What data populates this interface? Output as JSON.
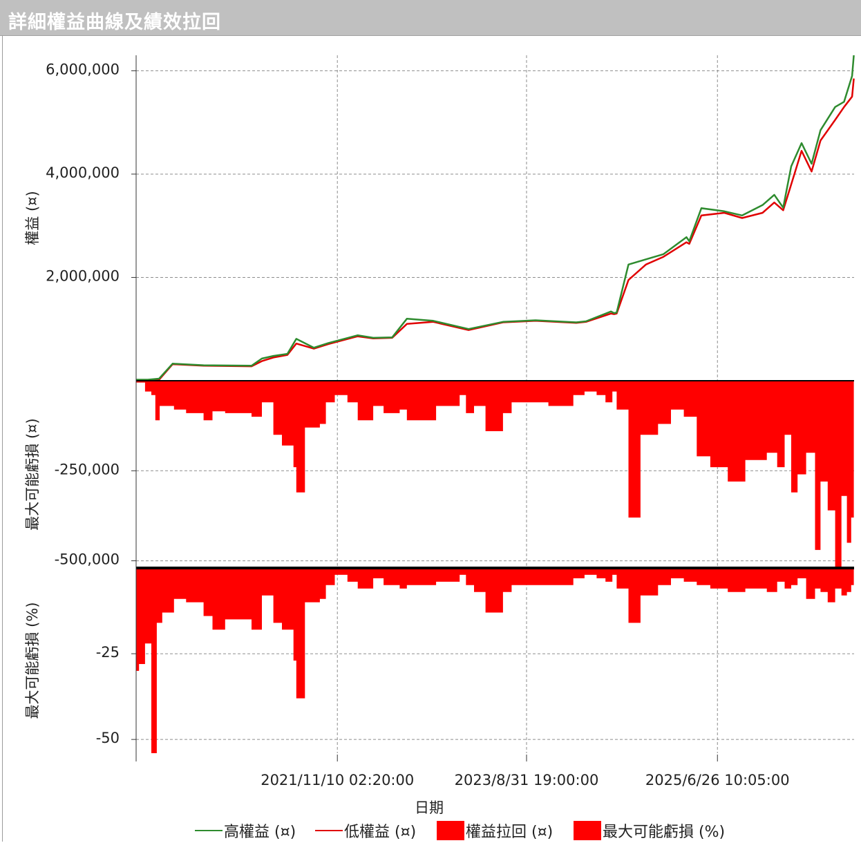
{
  "window": {
    "title": "詳細權益曲線及績效拉回"
  },
  "chart_data": [
    {
      "type": "line",
      "panel": "equity",
      "ylabel": "權益 (¤)",
      "yticks": [
        {
          "value": 2000000,
          "label": "2,000,000"
        },
        {
          "value": 4000000,
          "label": "4,000,000"
        },
        {
          "value": 6000000,
          "label": "6,000,000"
        }
      ],
      "ylim": [
        0,
        6300000
      ],
      "xlim": [
        "2019-12-10",
        "2026-10-15"
      ],
      "grid": true,
      "series": [
        {
          "name": "高權益 (¤)",
          "color": "#2e8b2e",
          "x": [
            "2019-12-10",
            "2020-01-20",
            "2020-02-28",
            "2020-04-15",
            "2020-08-01",
            "2021-01-15",
            "2021-02-20",
            "2021-04-01",
            "2021-05-20",
            "2021-06-20",
            "2021-08-20",
            "2021-10-10",
            "2022-01-20",
            "2022-03-15",
            "2022-05-20",
            "2022-07-10",
            "2022-10-10",
            "2023-02-10",
            "2023-06-10",
            "2023-10-01",
            "2024-02-20",
            "2024-03-25",
            "2024-06-20",
            "2024-07-01",
            "2024-07-10",
            "2024-08-20",
            "2024-10-20",
            "2024-12-20",
            "2025-03-10",
            "2025-03-20",
            "2025-05-01",
            "2025-07-20",
            "2025-09-20",
            "2025-11-30",
            "2026-01-10",
            "2026-02-10",
            "2026-03-10",
            "2026-04-15",
            "2026-05-20",
            "2026-06-20",
            "2026-08-10",
            "2026-09-10",
            "2026-10-08",
            "2026-10-14"
          ],
          "values": [
            20000,
            20000,
            40000,
            330000,
            300000,
            290000,
            430000,
            480000,
            520000,
            810000,
            640000,
            730000,
            880000,
            830000,
            840000,
            1200000,
            1160000,
            1000000,
            1140000,
            1170000,
            1130000,
            1150000,
            1340000,
            1310000,
            1320000,
            2250000,
            2350000,
            2450000,
            2780000,
            2700000,
            3340000,
            3280000,
            3200000,
            3400000,
            3600000,
            3350000,
            4150000,
            4600000,
            4200000,
            4850000,
            5300000,
            5400000,
            5900000,
            6300000
          ]
        },
        {
          "name": "低權益 (¤)",
          "color": "#e00000",
          "x": [
            "2019-12-10",
            "2020-01-20",
            "2020-02-28",
            "2020-04-15",
            "2020-08-01",
            "2021-01-15",
            "2021-02-20",
            "2021-04-01",
            "2021-05-20",
            "2021-06-20",
            "2021-08-20",
            "2021-10-10",
            "2022-01-20",
            "2022-03-15",
            "2022-05-20",
            "2022-07-10",
            "2022-10-10",
            "2023-02-10",
            "2023-06-10",
            "2023-10-01",
            "2024-02-20",
            "2024-03-25",
            "2024-06-20",
            "2024-07-01",
            "2024-07-10",
            "2024-08-20",
            "2024-10-20",
            "2024-12-20",
            "2025-03-10",
            "2025-03-20",
            "2025-05-01",
            "2025-07-20",
            "2025-09-20",
            "2025-11-30",
            "2026-01-10",
            "2026-02-10",
            "2026-03-10",
            "2026-04-15",
            "2026-05-20",
            "2026-06-20",
            "2026-08-10",
            "2026-09-10",
            "2026-10-08",
            "2026-10-14"
          ],
          "values": [
            0,
            0,
            20000,
            320000,
            290000,
            280000,
            380000,
            450000,
            500000,
            720000,
            620000,
            710000,
            860000,
            820000,
            830000,
            1100000,
            1140000,
            980000,
            1130000,
            1160000,
            1120000,
            1140000,
            1300000,
            1290000,
            1300000,
            1950000,
            2250000,
            2400000,
            2680000,
            2650000,
            3200000,
            3250000,
            3150000,
            3250000,
            3450000,
            3300000,
            3800000,
            4450000,
            4050000,
            4650000,
            5050000,
            5300000,
            5500000,
            5850000
          ]
        }
      ]
    },
    {
      "type": "area",
      "panel": "drawdown-amount",
      "ylabel": "最大可能虧損 (¤)",
      "yticks": [
        {
          "value": -250000,
          "label": "-250,000"
        },
        {
          "value": -500000,
          "label": "-500,000"
        }
      ],
      "ylim": [
        -520000,
        0
      ],
      "grid": true,
      "series": [
        {
          "name": "權益拉回 (¤)",
          "color": "#ff0000",
          "x": [
            "2019-12-10",
            "2020-01-10",
            "2020-02-01",
            "2020-02-15",
            "2020-03-01",
            "2020-04-20",
            "2020-06-01",
            "2020-08-01",
            "2020-09-01",
            "2020-10-15",
            "2021-01-15",
            "2021-02-20",
            "2021-04-01",
            "2021-05-01",
            "2021-06-10",
            "2021-06-20",
            "2021-07-20",
            "2021-09-10",
            "2021-10-01",
            "2021-11-01",
            "2021-12-15",
            "2022-01-20",
            "2022-03-15",
            "2022-04-20",
            "2022-06-15",
            "2022-07-10",
            "2022-10-20",
            "2023-01-10",
            "2023-02-01",
            "2023-03-01",
            "2023-04-10",
            "2023-06-10",
            "2023-07-10",
            "2023-11-15",
            "2024-02-10",
            "2024-03-20",
            "2024-05-01",
            "2024-06-01",
            "2024-06-25",
            "2024-07-10",
            "2024-08-20",
            "2024-10-01",
            "2024-12-01",
            "2025-01-15",
            "2025-03-01",
            "2025-04-15",
            "2025-06-01",
            "2025-08-01",
            "2025-10-01",
            "2025-12-15",
            "2026-01-20",
            "2026-02-15",
            "2026-03-10",
            "2026-04-01",
            "2026-05-01",
            "2026-06-01",
            "2026-06-20",
            "2026-07-15",
            "2026-08-10",
            "2026-09-01",
            "2026-09-20",
            "2026-10-05",
            "2026-10-14"
          ],
          "values": [
            -5000,
            -30000,
            -40000,
            -110000,
            -70000,
            -80000,
            -90000,
            -110000,
            -85000,
            -90000,
            -100000,
            -60000,
            -150000,
            -180000,
            -240000,
            -310000,
            -130000,
            -120000,
            -60000,
            -40000,
            -60000,
            -110000,
            -70000,
            -90000,
            -80000,
            -110000,
            -70000,
            -40000,
            -90000,
            -70000,
            -140000,
            -90000,
            -60000,
            -70000,
            -40000,
            -30000,
            -40000,
            -60000,
            -30000,
            -80000,
            -380000,
            -150000,
            -120000,
            -80000,
            -100000,
            -210000,
            -240000,
            -280000,
            -220000,
            -200000,
            -240000,
            -150000,
            -310000,
            -260000,
            -200000,
            -470000,
            -280000,
            -360000,
            -520000,
            -320000,
            -450000,
            -380000,
            -380000
          ]
        }
      ]
    },
    {
      "type": "area",
      "panel": "drawdown-percent",
      "ylabel": "最大可能虧損 (%)",
      "yticks": [
        {
          "value": -25,
          "label": "-25"
        },
        {
          "value": -50,
          "label": "-50"
        }
      ],
      "ylim": [
        -54,
        0
      ],
      "grid": true,
      "series": [
        {
          "name": "最大可能虧損 (%)",
          "color": "#ff0000",
          "x": [
            "2019-12-10",
            "2019-12-20",
            "2020-01-10",
            "2020-02-01",
            "2020-02-20",
            "2020-03-10",
            "2020-04-20",
            "2020-06-01",
            "2020-08-01",
            "2020-09-01",
            "2020-10-15",
            "2021-01-15",
            "2021-02-20",
            "2021-04-01",
            "2021-05-01",
            "2021-06-10",
            "2021-06-20",
            "2021-07-20",
            "2021-09-10",
            "2021-10-01",
            "2021-11-01",
            "2021-12-15",
            "2022-01-20",
            "2022-03-15",
            "2022-04-20",
            "2022-06-15",
            "2022-07-10",
            "2022-10-20",
            "2023-01-10",
            "2023-02-01",
            "2023-03-01",
            "2023-04-10",
            "2023-06-10",
            "2023-07-10",
            "2023-11-15",
            "2024-02-10",
            "2024-03-20",
            "2024-05-01",
            "2024-06-01",
            "2024-06-25",
            "2024-07-10",
            "2024-08-20",
            "2024-10-01",
            "2024-12-01",
            "2025-01-15",
            "2025-03-01",
            "2025-04-15",
            "2025-06-01",
            "2025-08-01",
            "2025-10-01",
            "2025-12-15",
            "2026-01-20",
            "2026-02-15",
            "2026-03-10",
            "2026-04-01",
            "2026-05-01",
            "2026-06-01",
            "2026-06-20",
            "2026-07-15",
            "2026-08-10",
            "2026-09-01",
            "2026-09-20",
            "2026-10-05",
            "2026-10-14"
          ],
          "values": [
            -30,
            -28,
            -22,
            -54,
            -16,
            -13,
            -9,
            -10,
            -14,
            -18,
            -15,
            -18,
            -8,
            -16,
            -18,
            -27,
            -38,
            -10,
            -9,
            -5,
            -2,
            -4,
            -6,
            -3,
            -5,
            -6,
            -5,
            -4,
            -2,
            -5,
            -7,
            -13,
            -7,
            -5,
            -5,
            -3,
            -2,
            -3,
            -4,
            -2,
            -6,
            -16,
            -8,
            -5,
            -3,
            -4,
            -5,
            -6,
            -7,
            -6,
            -7,
            -4,
            -6,
            -5,
            -3,
            -9,
            -6,
            -7,
            -10,
            -6,
            -8,
            -7,
            -5,
            -6
          ]
        }
      ]
    }
  ],
  "xaxis": {
    "label": "日期",
    "ticks": [
      {
        "date": "2021-11-10",
        "label": "2021/11/10 02:20:00"
      },
      {
        "date": "2023-08-31",
        "label": "2023/8/31 19:00:00"
      },
      {
        "date": "2025-06-26",
        "label": "2025/6/26 10:05:00"
      }
    ]
  },
  "legend": {
    "placement": "bottom",
    "items": [
      {
        "label": "高權益 (¤)",
        "color": "#2e8b2e",
        "kind": "line"
      },
      {
        "label": "低權益 (¤)",
        "color": "#e00000",
        "kind": "line"
      },
      {
        "label": "權益拉回 (¤)",
        "color": "#ff0000",
        "kind": "box"
      },
      {
        "label": "最大可能虧損 (%)",
        "color": "#ff0000",
        "kind": "box"
      }
    ]
  }
}
